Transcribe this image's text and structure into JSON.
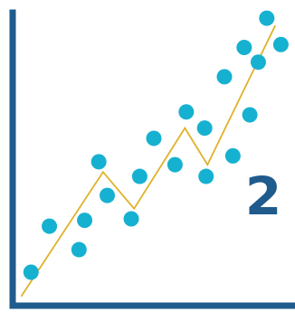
{
  "chart_data": {
    "type": "scatter",
    "title": "",
    "xlabel": "",
    "ylabel": "",
    "xlim": [
      0,
      100
    ],
    "ylim": [
      0,
      100
    ],
    "grid": false,
    "legend": "none",
    "points": [
      {
        "x": 6.5,
        "y": 10.8
      },
      {
        "x": 13.0,
        "y": 26.5
      },
      {
        "x": 23.5,
        "y": 18.5
      },
      {
        "x": 25.5,
        "y": 28.5
      },
      {
        "x": 30.5,
        "y": 48.5
      },
      {
        "x": 33.5,
        "y": 37.0
      },
      {
        "x": 42.0,
        "y": 29.0
      },
      {
        "x": 45.0,
        "y": 43.5
      },
      {
        "x": 50.0,
        "y": 56.5
      },
      {
        "x": 57.5,
        "y": 47.5
      },
      {
        "x": 61.5,
        "y": 65.5
      },
      {
        "x": 68.0,
        "y": 60.0
      },
      {
        "x": 68.5,
        "y": 43.5
      },
      {
        "x": 75.0,
        "y": 77.5
      },
      {
        "x": 78.0,
        "y": 50.5
      },
      {
        "x": 82.0,
        "y": 87.5
      },
      {
        "x": 84.0,
        "y": 64.5
      },
      {
        "x": 87.0,
        "y": 82.5
      },
      {
        "x": 90.0,
        "y": 97.5
      },
      {
        "x": 95.0,
        "y": 88.5
      }
    ],
    "trend_line": [
      {
        "x": 3.0,
        "y": 2.5
      },
      {
        "x": 32.0,
        "y": 45.0
      },
      {
        "x": 43.0,
        "y": 32.5
      },
      {
        "x": 61.0,
        "y": 60.0
      },
      {
        "x": 69.0,
        "y": 47.5
      },
      {
        "x": 93.0,
        "y": 95.0
      }
    ],
    "annotation": "2"
  },
  "colors": {
    "axis": "#1f5b8c",
    "point": "#16b1d0",
    "trend": "#e0b22b",
    "annotation": "#1f5b8c",
    "background": "#ffffff"
  }
}
